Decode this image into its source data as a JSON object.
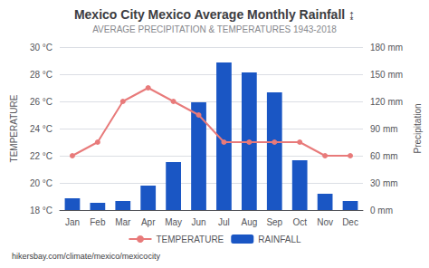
{
  "chart_data": {
    "type": "bar",
    "title": "Mexico City Mexico Average Monthly Rainfall ↨",
    "subtitle": "AVERAGE PRECIPITATION & TEMPERATURES 1943-2018",
    "footer": "hikersbay.com/climate/mexico/mexicocity",
    "ylabel": "TEMPERATURE",
    "y2label": "Precipitation",
    "categories": [
      "Jan",
      "Feb",
      "Mar",
      "Apr",
      "May",
      "Jun",
      "Jul",
      "Aug",
      "Sep",
      "Oct",
      "Nov",
      "Dec"
    ],
    "series": [
      {
        "name": "TEMPERATURE",
        "type": "line",
        "color": "#e87a7a",
        "marker": "circle",
        "values": [
          22.0,
          23.0,
          26.0,
          27.0,
          26.0,
          25.0,
          23.0,
          23.0,
          23.0,
          23.0,
          22.0,
          22.0
        ]
      },
      {
        "name": "RAINFALL",
        "type": "bar",
        "axis": "y2",
        "color": "#1a56c4",
        "values": [
          13,
          8,
          10,
          27,
          53,
          119,
          163,
          152,
          130,
          55,
          18,
          10
        ]
      }
    ],
    "ylim": [
      18,
      30
    ],
    "yticks": [
      {
        "value": 18,
        "label": "18 °C"
      },
      {
        "value": 20,
        "label": "20 °C"
      },
      {
        "value": 22,
        "label": "22 °C"
      },
      {
        "value": 24,
        "label": "24 °C"
      },
      {
        "value": 26,
        "label": "26 °C"
      },
      {
        "value": 28,
        "label": "28 °C"
      },
      {
        "value": 30,
        "label": "30 °C"
      }
    ],
    "y2lim": [
      0,
      180
    ],
    "y2ticks": [
      {
        "value": 0,
        "label": "0 mm"
      },
      {
        "value": 30,
        "label": "30 mm"
      },
      {
        "value": 60,
        "label": "60 mm"
      },
      {
        "value": 90,
        "label": "90 mm"
      },
      {
        "value": 120,
        "label": "120 mm"
      },
      {
        "value": 150,
        "label": "150 mm"
      },
      {
        "value": 180,
        "label": "180 mm"
      }
    ],
    "grid": true,
    "legend": "bottom"
  }
}
